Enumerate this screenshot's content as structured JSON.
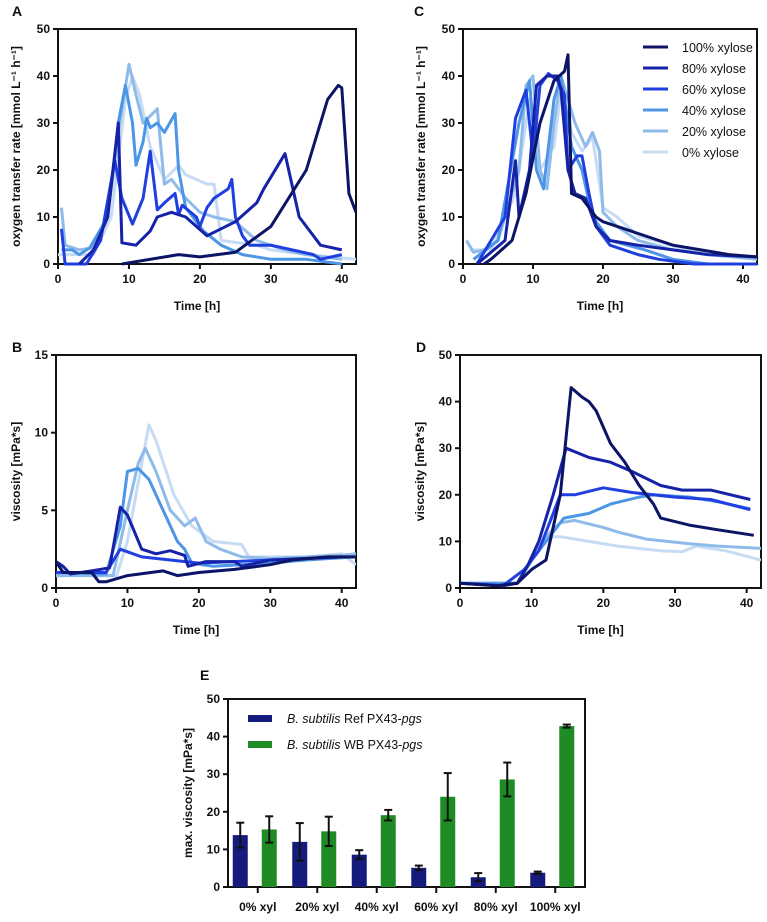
{
  "colors": {
    "100% xylose": "#0c1466",
    "80% xylose": "#1622a8",
    "60% xylose": "#1f3fe0",
    "40% xylose": "#4d95e6",
    "20% xylose": "#8fbbea",
    "0% xylose": "#c6dcf4",
    "ref": "#151b7c",
    "wb": "#1f8b25"
  },
  "chart_data": [
    {
      "panel": "A",
      "type": "line",
      "xlabel": "Time [h]",
      "ylabel": "oxygen transfer rate [mmol L⁻¹ h⁻¹]",
      "xlim": [
        0,
        42
      ],
      "ylim": [
        0,
        50
      ],
      "xticks": [
        0,
        10,
        20,
        30,
        40
      ],
      "yticks": [
        0,
        10,
        20,
        30,
        40,
        50
      ],
      "grid": false,
      "series": [
        {
          "name": "0% xylose",
          "x": [
            0,
            5,
            7.5,
            9.5,
            10.5,
            11.5,
            13,
            15,
            17,
            18,
            21,
            22,
            23,
            28,
            30,
            35,
            42
          ],
          "y": [
            2,
            2,
            10,
            35,
            40,
            36,
            25,
            18,
            21,
            19,
            17,
            17,
            5,
            4,
            3,
            2,
            1
          ]
        },
        {
          "name": "20% xylose",
          "x": [
            0.5,
            1,
            3,
            5,
            7,
            8.7,
            10,
            11,
            12,
            14,
            15,
            16,
            18,
            20,
            22,
            25,
            28,
            32,
            35,
            40
          ],
          "y": [
            12,
            4,
            3,
            3.5,
            10,
            30,
            42.5,
            36,
            30,
            33,
            17,
            18,
            14,
            11,
            10,
            9,
            5,
            3,
            2,
            1
          ]
        },
        {
          "name": "40% xylose",
          "x": [
            0.5,
            2,
            3,
            4.5,
            7,
            8.5,
            9.5,
            10.5,
            11,
            12,
            12.5,
            13,
            14,
            15,
            16.5,
            17,
            18,
            19,
            20.5,
            23,
            26,
            30,
            35,
            40
          ],
          "y": [
            3,
            3,
            2,
            3.5,
            10,
            30,
            38,
            30,
            21,
            26,
            31,
            29,
            30,
            28,
            32,
            20,
            12,
            10,
            7,
            4,
            2,
            1,
            1,
            0
          ]
        },
        {
          "name": "60% xylose",
          "x": [
            0.5,
            1,
            4,
            6,
            8,
            9,
            10.5,
            12,
            13,
            14,
            15,
            16.5,
            17,
            17.5,
            19.5,
            20,
            21,
            22,
            24,
            24.5,
            25,
            26,
            27,
            30,
            33,
            36,
            37,
            40
          ],
          "y": [
            7.5,
            0,
            0,
            5,
            22,
            14,
            8.5,
            14,
            24,
            11.5,
            13,
            15,
            10.5,
            12.5,
            10,
            8,
            12,
            14,
            16,
            18,
            10,
            6,
            4,
            4,
            3,
            2,
            1,
            2
          ]
        },
        {
          "name": "80% xylose",
          "x": [
            3,
            5,
            7,
            8.5,
            9,
            11,
            13,
            14,
            16,
            18,
            21,
            25,
            28,
            29,
            31,
            32,
            34,
            37,
            40
          ],
          "y": [
            0,
            3,
            10,
            30,
            4.5,
            4,
            7,
            10,
            11,
            10,
            6,
            9,
            13,
            16,
            21,
            23.5,
            10,
            4,
            3
          ]
        },
        {
          "name": "100% xylose",
          "x": [
            9,
            17,
            20,
            25,
            30,
            35,
            38,
            39.5,
            40,
            41,
            42
          ],
          "y": [
            0,
            2,
            1.5,
            2.5,
            8,
            20,
            35,
            38,
            37.5,
            15,
            11
          ]
        }
      ]
    },
    {
      "panel": "C",
      "type": "line",
      "xlabel": "Time [h]",
      "ylabel": "oxygen transfer rate [mmol L⁻¹ h⁻¹]",
      "xlim": [
        0,
        42
      ],
      "ylim": [
        0,
        50
      ],
      "xticks": [
        0,
        10,
        20,
        30,
        40
      ],
      "yticks": [
        0,
        10,
        20,
        30,
        40,
        50
      ],
      "grid": false,
      "legend": "top-right",
      "series": [
        {
          "name": "0% xylose",
          "x": [
            1,
            4,
            7.5,
            9.5,
            11,
            13,
            14,
            15.5,
            17,
            18.5,
            20,
            22,
            25,
            32,
            42
          ],
          "y": [
            3,
            3,
            15,
            35,
            20,
            25,
            37,
            28,
            24,
            27,
            12,
            10,
            6,
            3,
            1
          ]
        },
        {
          "name": "20% xylose",
          "x": [
            0.5,
            1.5,
            3,
            5,
            8,
            9,
            10,
            11,
            12,
            13,
            14,
            16,
            17.5,
            18.5,
            19.5,
            20,
            22,
            25,
            30,
            35,
            42
          ],
          "y": [
            5,
            2.5,
            3,
            5,
            20,
            38,
            40,
            20,
            16,
            30,
            40,
            30,
            25,
            28,
            24,
            11,
            8,
            5,
            3,
            2,
            1
          ]
        },
        {
          "name": "40% xylose",
          "x": [
            1.5,
            5,
            8,
            9.5,
            10.5,
            11.5,
            13,
            14,
            15.5,
            17,
            18.5,
            21,
            26,
            30,
            35,
            42
          ],
          "y": [
            1,
            5,
            30,
            39,
            20,
            16,
            35,
            40,
            25,
            20,
            10,
            5,
            3,
            1,
            0,
            0
          ]
        },
        {
          "name": "60% xylose",
          "x": [
            2,
            6,
            7.5,
            9,
            10,
            11,
            12.2,
            13.5,
            14.5,
            15,
            16.3,
            17,
            18,
            19,
            21,
            25,
            28,
            33,
            42
          ],
          "y": [
            0,
            10,
            31,
            37,
            23,
            38,
            40.5,
            39,
            36,
            20,
            23,
            23,
            15,
            8,
            4,
            2,
            1,
            0,
            0
          ]
        },
        {
          "name": "80% xylose",
          "x": [
            2,
            6,
            7.5,
            8,
            9.5,
            10.5,
            12,
            13.5,
            14,
            15,
            16,
            17.5,
            19,
            21,
            25,
            30,
            35,
            42
          ],
          "y": [
            0,
            5,
            22,
            10,
            20,
            38,
            40,
            40,
            37,
            20,
            15,
            14,
            8,
            5,
            4,
            3,
            2,
            1.5
          ]
        },
        {
          "name": "100% xylose",
          "x": [
            3,
            4,
            7,
            9,
            11,
            13,
            14.5,
            15,
            15.5,
            17,
            19,
            20,
            24,
            28,
            30,
            34,
            38,
            42
          ],
          "y": [
            0,
            1,
            5,
            15,
            30,
            39,
            41,
            44.5,
            15,
            14,
            10,
            9,
            7,
            5,
            4,
            3,
            2,
            1.5
          ]
        }
      ]
    },
    {
      "panel": "B",
      "type": "line",
      "xlabel": "Time [h]",
      "ylabel": "viscosity [mPa*s]",
      "xlim": [
        0,
        42
      ],
      "ylim": [
        0,
        15
      ],
      "xticks": [
        0,
        10,
        20,
        30,
        40
      ],
      "yticks": [
        0,
        5,
        10,
        15
      ],
      "grid": false,
      "series": [
        {
          "name": "0% xylose",
          "x": [
            0,
            8.5,
            10,
            12,
            13,
            14,
            16.5,
            19,
            22,
            26,
            27,
            35,
            40,
            42
          ],
          "y": [
            0.8,
            0.8,
            3,
            8,
            10.5,
            9.5,
            6,
            4,
            3,
            2.8,
            2,
            2,
            2.2,
            1.5
          ]
        },
        {
          "name": "20% xylose",
          "x": [
            0,
            8,
            10,
            11.5,
            12.5,
            14,
            16,
            18,
            19.5,
            21,
            23,
            26,
            30,
            40,
            42
          ],
          "y": [
            0.8,
            0.8,
            5,
            8,
            9,
            7.5,
            5,
            4,
            4.5,
            3,
            2.5,
            2,
            1.9,
            2.1,
            2.2
          ]
        },
        {
          "name": "40% xylose",
          "x": [
            0,
            7,
            9,
            10,
            11.5,
            13,
            15,
            17,
            18,
            19,
            22,
            30,
            35,
            42
          ],
          "y": [
            1,
            0.9,
            4,
            7.5,
            7.7,
            7,
            5,
            3,
            2.5,
            1.6,
            1.4,
            1.6,
            1.8,
            2
          ]
        },
        {
          "name": "60% xylose",
          "x": [
            0,
            7,
            9,
            12,
            20,
            30,
            40
          ],
          "y": [
            1,
            1,
            2.5,
            2,
            1.6,
            1.8,
            2
          ]
        },
        {
          "name": "80% xylose",
          "x": [
            0,
            1,
            2,
            5,
            7.5,
            9,
            10,
            12,
            14,
            16,
            18,
            18.5,
            21,
            25,
            26,
            30,
            35,
            40
          ],
          "y": [
            1.7,
            1.4,
            0.9,
            1.1,
            1.3,
            5.2,
            4.7,
            2.5,
            2.2,
            2.4,
            2.1,
            1.4,
            1.7,
            1.7,
            1.4,
            1.8,
            1.9,
            2
          ]
        },
        {
          "name": "100% xylose",
          "x": [
            0,
            1,
            5,
            6,
            7,
            10,
            15,
            17,
            20,
            25,
            30,
            33,
            38,
            42
          ],
          "y": [
            1.7,
            1,
            1,
            0.4,
            0.4,
            0.8,
            1.1,
            0.8,
            1,
            1.2,
            1.5,
            1.8,
            2,
            2
          ]
        }
      ]
    },
    {
      "panel": "D",
      "type": "line",
      "xlabel": "Time [h]",
      "ylabel": "viscosity [mPa*s]",
      "xlim": [
        0,
        42
      ],
      "ylim": [
        0,
        50
      ],
      "xticks": [
        0,
        10,
        20,
        30,
        40
      ],
      "yticks": [
        0,
        10,
        20,
        30,
        40,
        50
      ],
      "grid": false,
      "series": [
        {
          "name": "0% xylose",
          "x": [
            0,
            8,
            10,
            12,
            14,
            18,
            22,
            28,
            31,
            33,
            37,
            42
          ],
          "y": [
            1,
            1,
            6,
            11,
            11,
            10,
            9,
            8,
            7.8,
            9,
            8,
            6
          ]
        },
        {
          "name": "20% xylose",
          "x": [
            0,
            8,
            10,
            12,
            14,
            16,
            20,
            22,
            26,
            32,
            36,
            42
          ],
          "y": [
            1,
            1,
            6,
            11,
            14,
            14.5,
            13,
            12,
            10.5,
            9.5,
            9,
            8.5
          ]
        },
        {
          "name": "40% xylose",
          "x": [
            0,
            8,
            10,
            12,
            14.5,
            18,
            21,
            25,
            27,
            32,
            36,
            40.5
          ],
          "y": [
            1,
            1,
            6,
            10,
            15,
            16,
            18,
            19.5,
            20,
            19.5,
            18.5,
            17
          ]
        },
        {
          "name": "60% xylose",
          "x": [
            0,
            6,
            9,
            11,
            13,
            14,
            16,
            20,
            24,
            30,
            35,
            40.5
          ],
          "y": [
            1,
            0.5,
            4,
            8,
            16,
            20,
            20,
            21.5,
            20.5,
            19.5,
            19,
            16.8
          ]
        },
        {
          "name": "80% xylose",
          "x": [
            0,
            6,
            8,
            9.5,
            11,
            13,
            14.8,
            18,
            21,
            24,
            28,
            31,
            35,
            40.5
          ],
          "y": [
            1,
            0.5,
            1,
            5,
            10,
            20,
            30,
            28,
            27,
            25,
            22,
            21,
            21,
            19
          ]
        },
        {
          "name": "100% xylose",
          "x": [
            0,
            5,
            8,
            10,
            12,
            14,
            15.5,
            17,
            18,
            19,
            21,
            23,
            25,
            27,
            28,
            32,
            36,
            41
          ],
          "y": [
            1,
            0.5,
            1,
            4,
            6,
            20,
            43,
            41,
            40,
            38,
            31,
            27,
            22,
            18,
            15,
            13.5,
            12.5,
            11.3
          ]
        }
      ]
    },
    {
      "panel": "E",
      "type": "bar",
      "xlabel": "",
      "ylabel": "max. viscosity [mPa*s]",
      "ylim": [
        0,
        50
      ],
      "yticks": [
        0,
        10,
        20,
        30,
        40,
        50
      ],
      "grid": false,
      "legend": "top-left",
      "categories": [
        "0% xyl",
        "20% xyl",
        "40% xyl",
        "60% xyl",
        "80% xyl",
        "100% xyl"
      ],
      "series": [
        {
          "name": "B. subtilis Ref PX43-pgs",
          "name_parts": [
            "B. subtilis",
            " Ref PX43-",
            "pgs"
          ],
          "values": [
            13.8,
            12,
            8.6,
            5.1,
            2.6,
            3.8
          ],
          "errors": [
            3.3,
            5,
            1.2,
            0.6,
            1.1,
            0.3
          ]
        },
        {
          "name": "B. subtilis WB PX43-pgs",
          "name_parts": [
            "B. subtilis",
            " WB PX43-",
            "pgs"
          ],
          "values": [
            15.3,
            14.8,
            19.1,
            24,
            28.6,
            42.8
          ],
          "errors": [
            3.5,
            3.9,
            1.4,
            6.3,
            4.5,
            0.4
          ]
        }
      ]
    }
  ]
}
